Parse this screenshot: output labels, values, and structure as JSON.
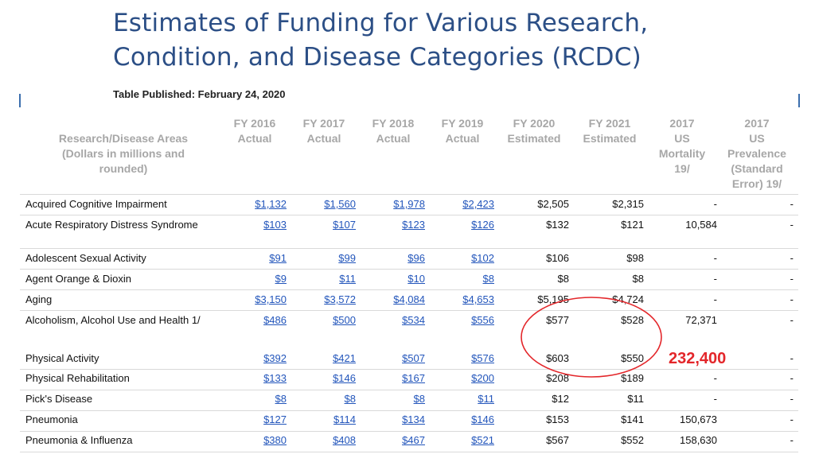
{
  "slide": {
    "title_line1": "Estimates of Funding for Various Research,",
    "title_line2": "Condition, and Disease Categories (RCDC)",
    "published": "Table Published: February 24, 2020",
    "callout": "232,400",
    "annotation_color": "#e3262a"
  },
  "table": {
    "headers": {
      "area": [
        "Research/Disease Areas",
        "(Dollars in millions and",
        "rounded)"
      ],
      "fy2016": [
        "FY 2016",
        "Actual"
      ],
      "fy2017": [
        "FY 2017",
        "Actual"
      ],
      "fy2018": [
        "FY 2018",
        "Actual"
      ],
      "fy2019": [
        "FY 2019",
        "Actual"
      ],
      "fy2020": [
        "FY 2020",
        "Estimated"
      ],
      "fy2021": [
        "FY 2021",
        "Estimated"
      ],
      "mortality": [
        "2017",
        "US",
        "Mortality",
        "19/"
      ],
      "prevalence": [
        "2017",
        "US",
        "Prevalence",
        "(Standard",
        "Error) 19/"
      ]
    },
    "rows": [
      {
        "name": "Acquired Cognitive Impairment",
        "fy2016": "$1,132",
        "fy2017": "$1,560",
        "fy2018": "$1,978",
        "fy2019": "$2,423",
        "fy2020": "$2,505",
        "fy2021": "$2,315",
        "mortality": "-",
        "prevalence": "-"
      },
      {
        "name": "Acute Respiratory Distress Syndrome",
        "fy2016": "$103",
        "fy2017": "$107",
        "fy2018": "$123",
        "fy2019": "$126",
        "fy2020": "$132",
        "fy2021": "$121",
        "mortality": "10,584",
        "prevalence": "-"
      },
      {
        "name": "Adolescent Sexual Activity",
        "fy2016": "$91",
        "fy2017": "$99",
        "fy2018": "$96",
        "fy2019": "$102",
        "fy2020": "$106",
        "fy2021": "$98",
        "mortality": "-",
        "prevalence": "-"
      },
      {
        "name": "Agent Orange & Dioxin",
        "fy2016": "$9",
        "fy2017": "$11",
        "fy2018": "$10",
        "fy2019": "$8",
        "fy2020": "$8",
        "fy2021": "$8",
        "mortality": "-",
        "prevalence": "-"
      },
      {
        "name": "Aging",
        "fy2016": "$3,150",
        "fy2017": "$3,572",
        "fy2018": "$4,084",
        "fy2019": "$4,653",
        "fy2020": "$5,195",
        "fy2021": "$4,724",
        "mortality": "-",
        "prevalence": "-"
      },
      {
        "name": "Alcoholism, Alcohol Use and Health 1/",
        "fy2016": "$486",
        "fy2017": "$500",
        "fy2018": "$534",
        "fy2019": "$556",
        "fy2020": "$577",
        "fy2021": "$528",
        "mortality": "72,371",
        "prevalence": "-"
      },
      {
        "name": "Physical Activity",
        "fy2016": "$392",
        "fy2017": "$421",
        "fy2018": "$507",
        "fy2019": "$576",
        "fy2020": "$603",
        "fy2021": "$550",
        "mortality": "",
        "prevalence": "-"
      },
      {
        "name": "Physical Rehabilitation",
        "fy2016": "$133",
        "fy2017": "$146",
        "fy2018": "$167",
        "fy2019": "$200",
        "fy2020": "$208",
        "fy2021": "$189",
        "mortality": "-",
        "prevalence": "-"
      },
      {
        "name": "Pick's Disease",
        "fy2016": "$8",
        "fy2017": "$8",
        "fy2018": "$8",
        "fy2019": "$11",
        "fy2020": "$12",
        "fy2021": "$11",
        "mortality": "-",
        "prevalence": "-"
      },
      {
        "name": "Pneumonia",
        "fy2016": "$127",
        "fy2017": "$114",
        "fy2018": "$134",
        "fy2019": "$146",
        "fy2020": "$153",
        "fy2021": "$141",
        "mortality": "150,673",
        "prevalence": "-"
      },
      {
        "name": "Pneumonia & Influenza",
        "fy2016": "$380",
        "fy2017": "$408",
        "fy2018": "$467",
        "fy2019": "$521",
        "fy2020": "$567",
        "fy2021": "$552",
        "mortality": "158,630",
        "prevalence": "-"
      }
    ]
  }
}
